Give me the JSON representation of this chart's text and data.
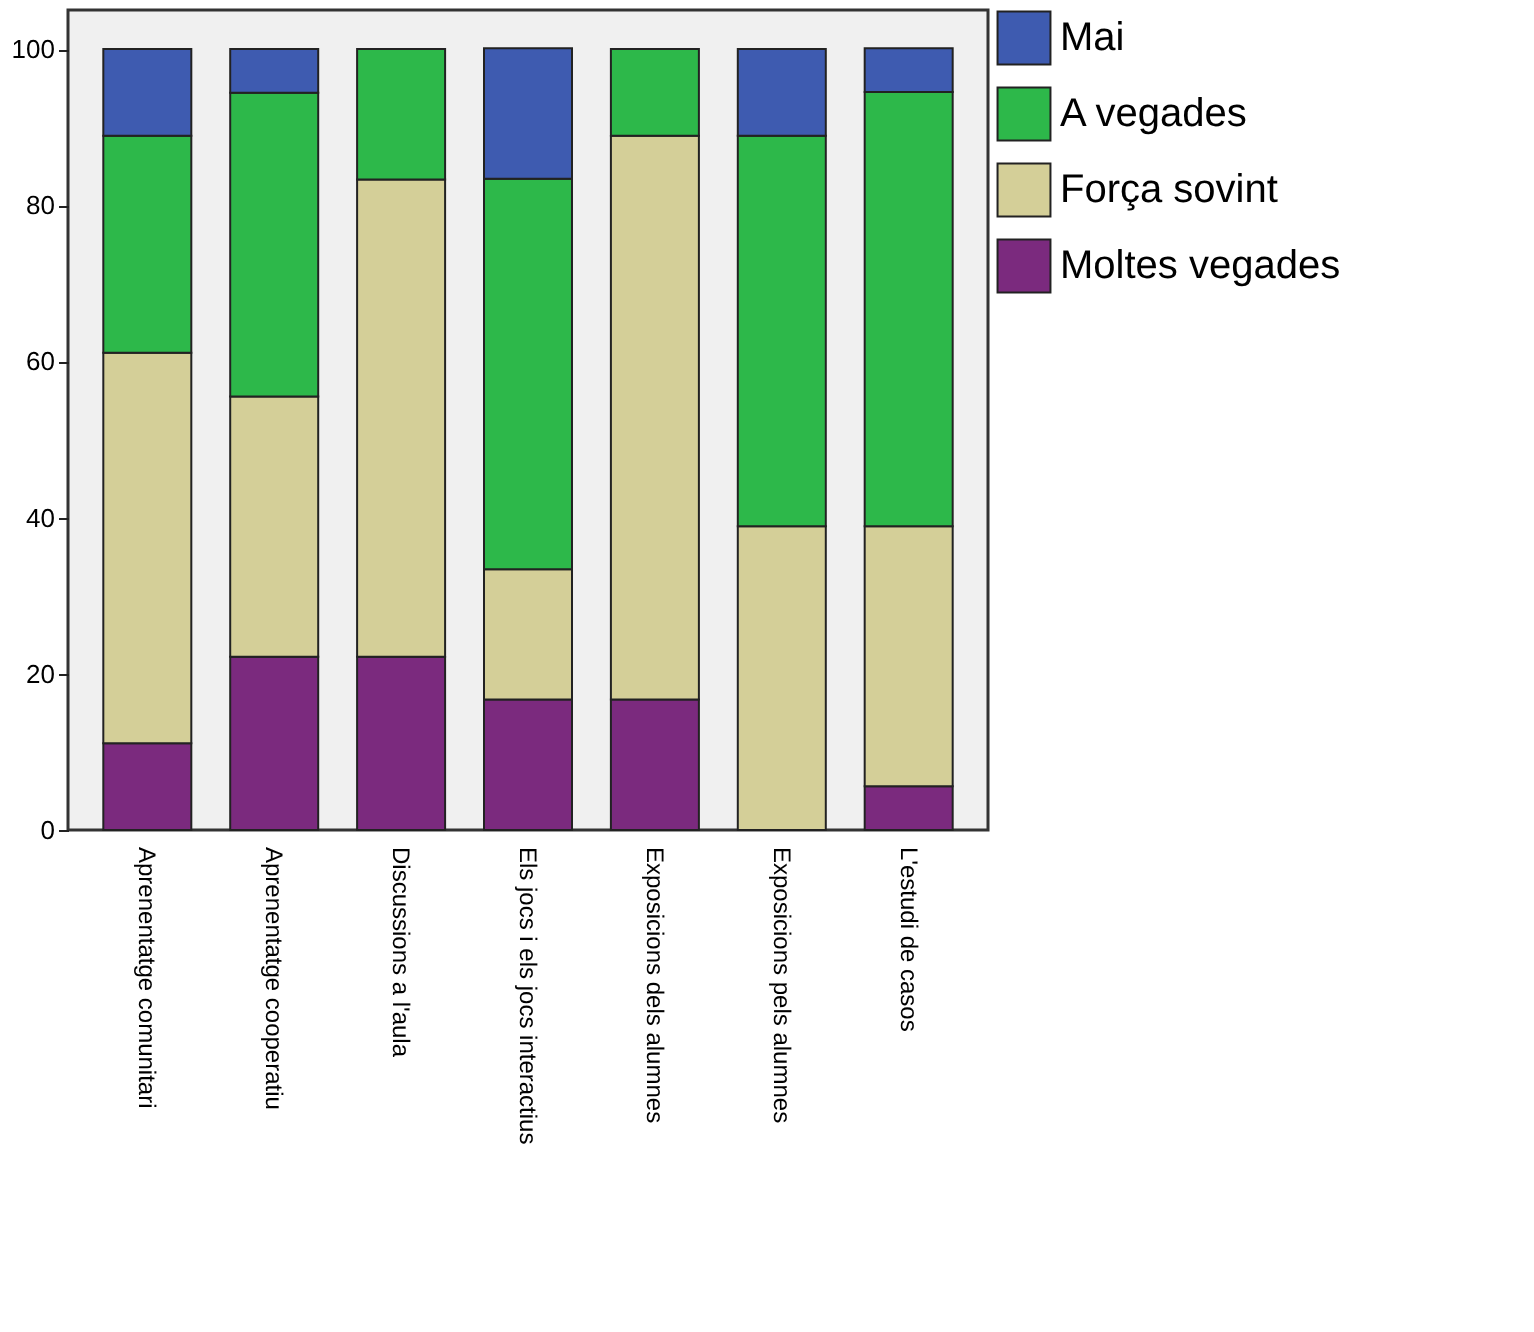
{
  "chart_data": {
    "type": "bar",
    "stacked": true,
    "categories": [
      "Aprenentatge comunitari",
      "Aprenentatge cooperatiu",
      "Discussions a l'aula",
      "Els jocs i els jocs interactius",
      "Exposicions dels alumnes",
      "Exposicions pels alumnes",
      "L'estudi de casos"
    ],
    "series": [
      {
        "name": "Moltes vegades",
        "color": "#7b2a7e",
        "values": [
          11.1,
          22.2,
          22.2,
          16.7,
          16.7,
          0,
          5.6
        ]
      },
      {
        "name": "Força sovint",
        "color": "#d4cf98",
        "values": [
          50,
          33.3,
          61.1,
          16.7,
          72.2,
          38.9,
          33.3
        ]
      },
      {
        "name": "A vegades",
        "color": "#2db84a",
        "values": [
          27.8,
          38.9,
          16.7,
          50,
          11.1,
          50,
          55.6
        ]
      },
      {
        "name": "Mai",
        "color": "#3e5bb0",
        "values": [
          11.1,
          5.6,
          0,
          16.7,
          0,
          11.1,
          5.6
        ]
      }
    ],
    "ylim": [
      0,
      105
    ],
    "yticks": [
      0,
      20,
      40,
      60,
      80,
      100
    ],
    "grid": false,
    "legend": "right"
  }
}
